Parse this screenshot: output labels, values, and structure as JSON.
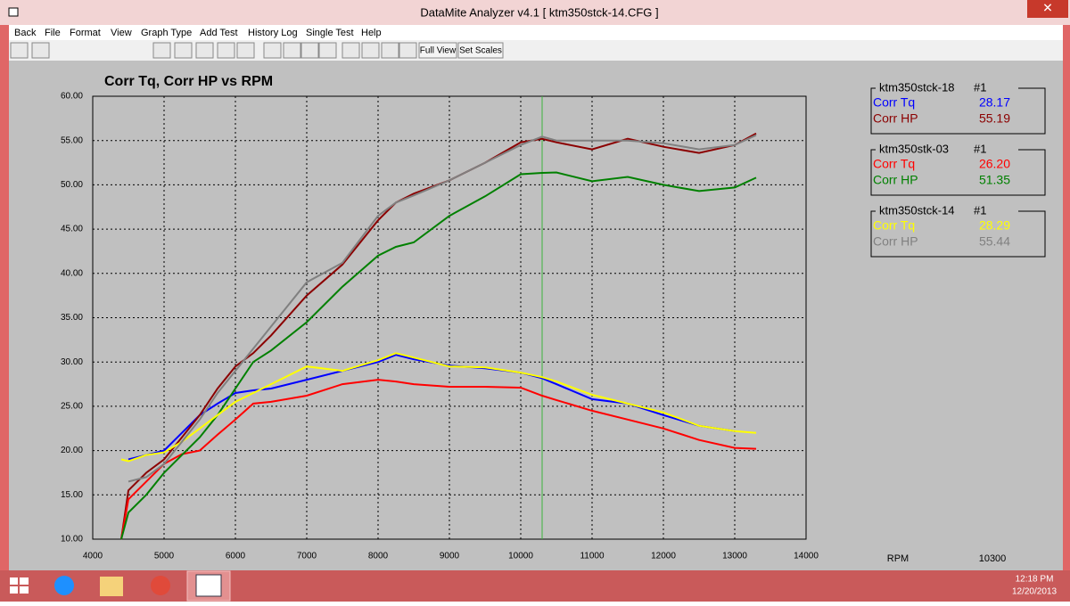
{
  "window": {
    "title": "DataMite Analyzer v4.1  [ ktm350stck-14.CFG ]"
  },
  "menu": [
    "Back",
    "File",
    "Format",
    "View",
    "Graph Type",
    "Add Test",
    "History Log",
    "Single Test",
    "Help"
  ],
  "toolbar": [
    "Full View",
    "Set Scales"
  ],
  "taskbar": {
    "time": "12:18 PM",
    "date": "12/20/2013"
  },
  "chart_data": {
    "type": "line",
    "title": "Corr Tq, Corr HP vs RPM",
    "xlabel": "RPM",
    "cursor": 10300,
    "x": [
      4400,
      4500,
      4750,
      5000,
      5250,
      5500,
      5750,
      6000,
      6250,
      6500,
      7000,
      7500,
      8000,
      8250,
      8500,
      9000,
      9500,
      10000,
      10300,
      10500,
      11000,
      11500,
      12000,
      12500,
      13000,
      13300
    ],
    "xlim": [
      4000,
      14000
    ],
    "xticks": [
      4000,
      5000,
      6000,
      7000,
      8000,
      9000,
      10000,
      11000,
      12000,
      13000,
      14000
    ],
    "ylim": [
      10,
      60
    ],
    "yticks": [
      {
        "value": 10,
        "label": "10.00"
      },
      {
        "value": 15,
        "label": "15.00"
      },
      {
        "value": 20,
        "label": "20.00"
      },
      {
        "value": 25,
        "label": "25.00"
      },
      {
        "value": 30,
        "label": "30.00"
      },
      {
        "value": 35,
        "label": "35.00"
      },
      {
        "value": 40,
        "label": "40.00"
      },
      {
        "value": 45,
        "label": "45.00"
      },
      {
        "value": 50,
        "label": "50.00"
      },
      {
        "value": 55,
        "label": "55.00"
      },
      {
        "value": 60,
        "label": "60.00"
      }
    ],
    "grid": true,
    "tests": [
      {
        "name": "ktm350stck-18",
        "run": "#1"
      },
      {
        "name": "ktm350stk-03",
        "run": "#1"
      },
      {
        "name": "ktm350stck-14",
        "run": "#1"
      }
    ],
    "series": [
      {
        "name": "Corr Tq",
        "color": "#0000ff",
        "readout": "28.17",
        "values": [
          null,
          19.0,
          19.5,
          20,
          22,
          24,
          25.3,
          26.5,
          26.8,
          27,
          28,
          29,
          30,
          30.8,
          30.3,
          29.6,
          29.3,
          28.8,
          28.17,
          27.5,
          25.8,
          25.3,
          24,
          22.8,
          22.2,
          null
        ]
      },
      {
        "name": "Corr HP",
        "color": "#8b0000",
        "readout": "55.19",
        "values": [
          10,
          15.5,
          17.5,
          19,
          21.5,
          24,
          27,
          29.5,
          31,
          33,
          37.5,
          41,
          46,
          48,
          49,
          50.5,
          52.5,
          54.8,
          55.19,
          54.8,
          54,
          55.2,
          54.3,
          53.6,
          54.5,
          55.8
        ]
      },
      {
        "name": "Corr Tq",
        "color": "#ff0000",
        "readout": "26.20",
        "values": [
          10,
          14.5,
          16.5,
          18.5,
          19.6,
          20,
          21.8,
          23.5,
          25.3,
          25.5,
          26.2,
          27.5,
          28,
          27.8,
          27.5,
          27.2,
          27.2,
          27.1,
          26.2,
          25.7,
          24.5,
          23.5,
          22.5,
          21.2,
          20.3,
          20.2
        ]
      },
      {
        "name": "Corr HP",
        "color": "#008000",
        "readout": "51.35",
        "values": [
          10,
          13,
          15,
          17.5,
          19.5,
          21.5,
          24,
          27,
          30,
          31.3,
          34.5,
          38.5,
          42,
          43,
          43.5,
          46.5,
          48.7,
          51.2,
          51.35,
          51.4,
          50.4,
          50.9,
          50,
          49.3,
          49.7,
          50.8
        ]
      },
      {
        "name": "Corr Tq",
        "color": "#ffff00",
        "readout": "28.29",
        "values": [
          19.0,
          18.8,
          19.5,
          19.8,
          21,
          22.5,
          24,
          25.5,
          26.5,
          27.5,
          29.5,
          29,
          30.2,
          31.0,
          30.5,
          29.5,
          29.4,
          28.8,
          28.29,
          27.8,
          26.3,
          25.3,
          24.3,
          22.8,
          22.2,
          22.0
        ]
      },
      {
        "name": "Corr HP",
        "color": "#808080",
        "readout": "55.44",
        "values": [
          null,
          16.5,
          17,
          18.5,
          21,
          23.5,
          26.5,
          29,
          31.5,
          34,
          39,
          41.2,
          46.5,
          48,
          48.8,
          50.5,
          52.5,
          54.5,
          55.44,
          55,
          55,
          55,
          54.7,
          54,
          54.5,
          55.6
        ]
      }
    ]
  }
}
